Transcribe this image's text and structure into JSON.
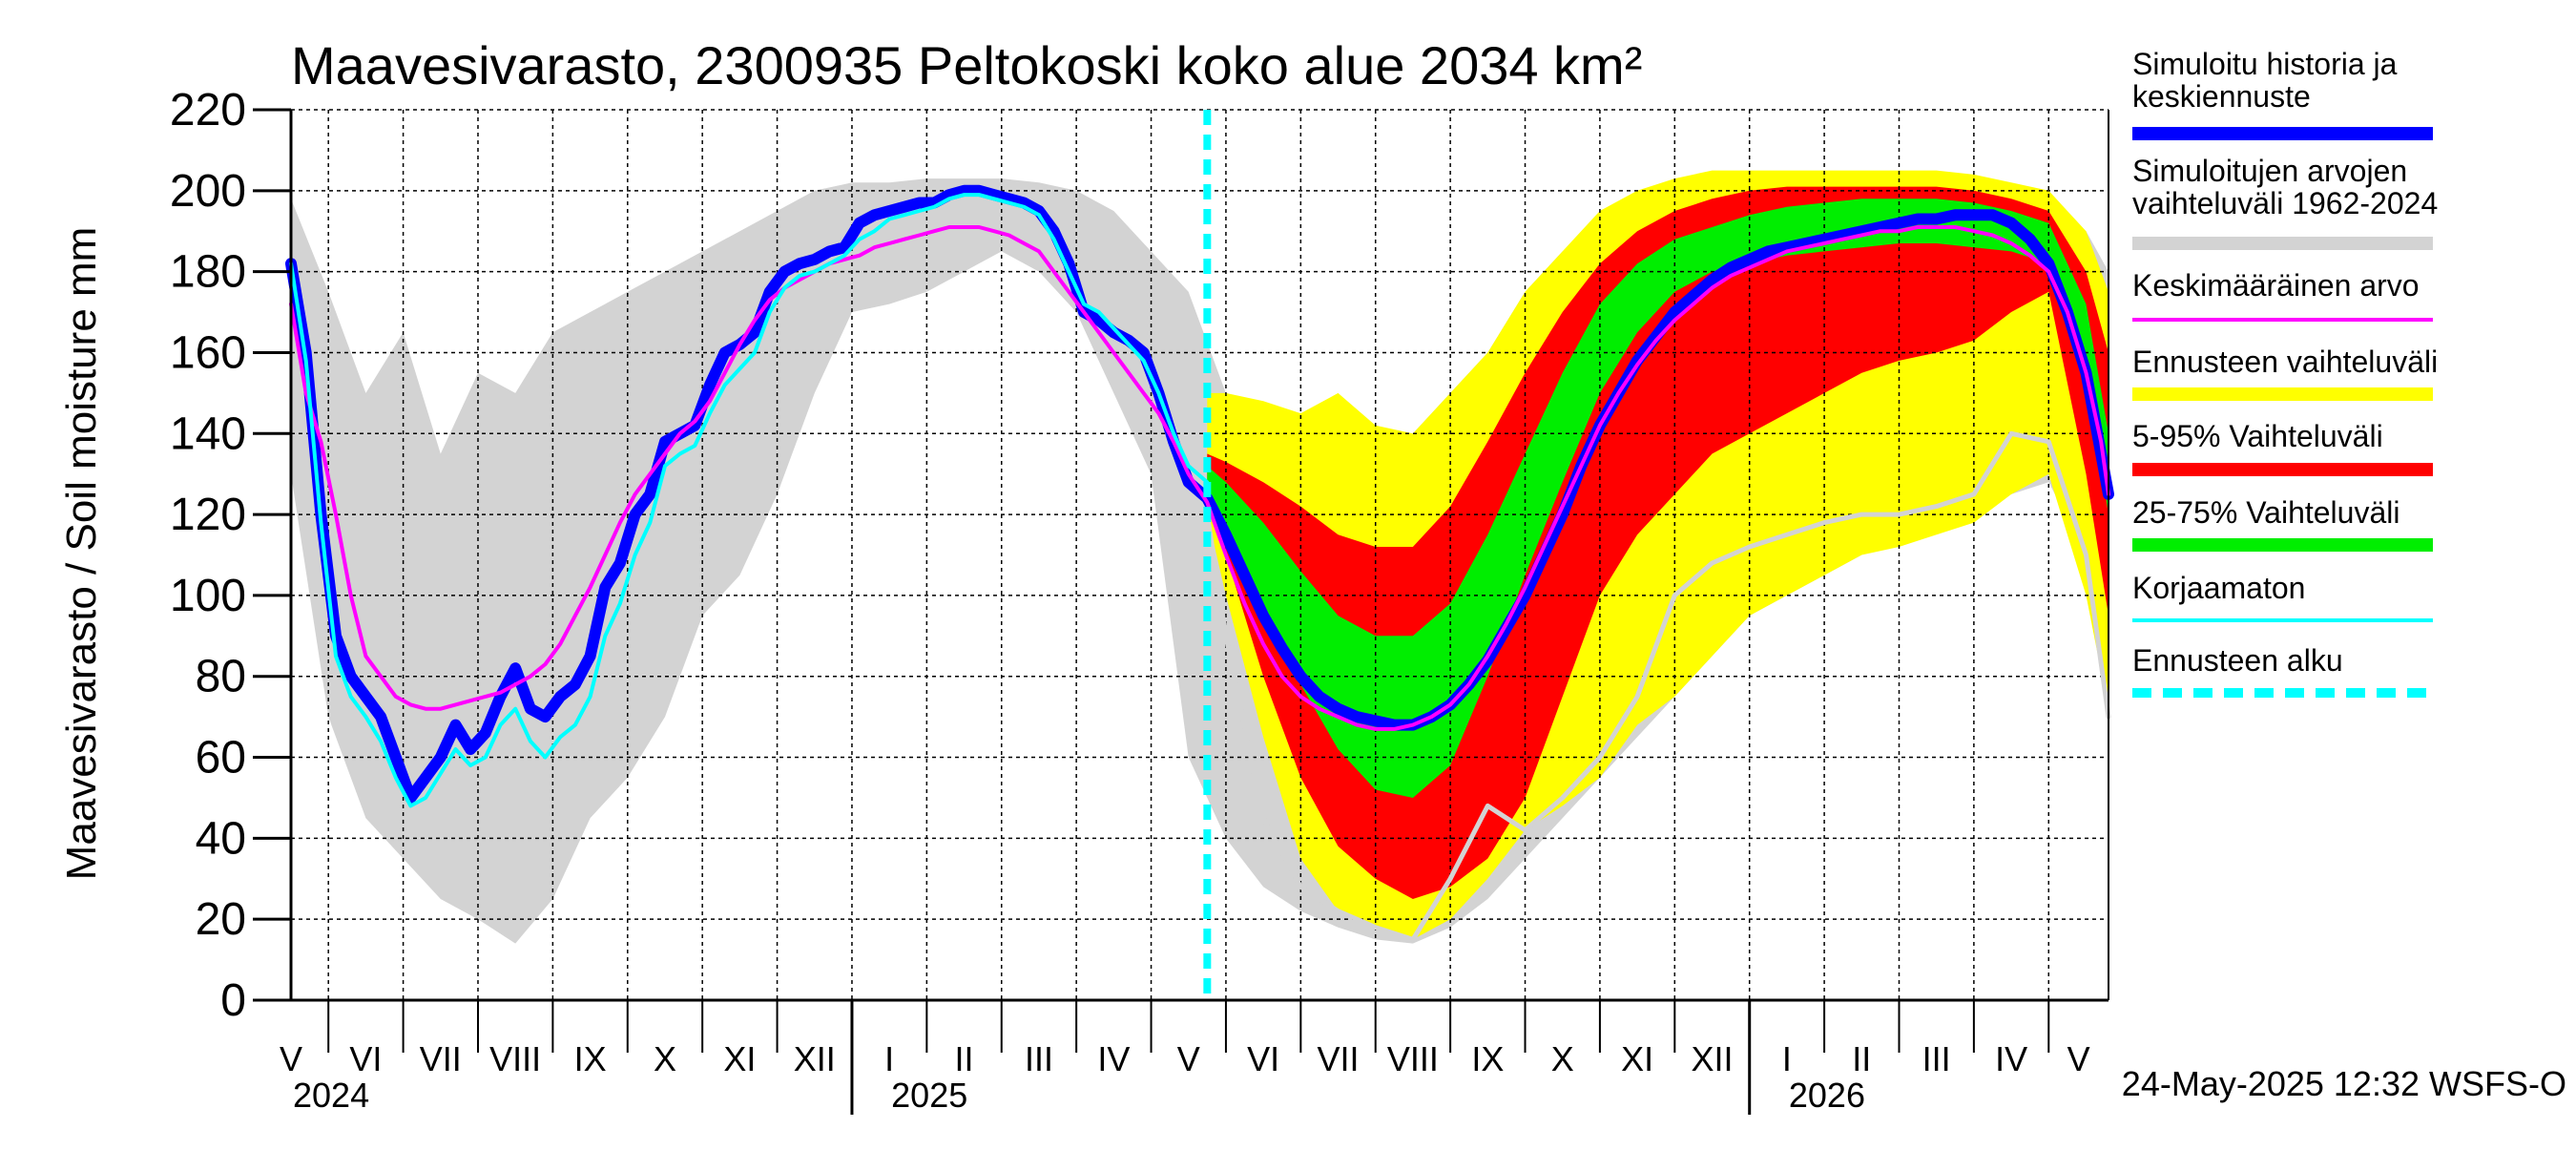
{
  "chart_data": {
    "type": "area",
    "title": "Maavesivarasto, 2300935 Peltokoski koko alue 2034 km²",
    "ylabel": "Maavesivarasto / Soil moisture   mm",
    "ylim": [
      0,
      220
    ],
    "yticks": [
      0,
      20,
      40,
      60,
      80,
      100,
      120,
      140,
      160,
      180,
      200,
      220
    ],
    "x_unit": "months since 1 May 2024",
    "xlim": [
      0.5,
      24.8
    ],
    "forecast_start": 12.75,
    "month_labels": [
      {
        "label": "V",
        "x": 0.5
      },
      {
        "label": "VI",
        "x": 1.5
      },
      {
        "label": "VII",
        "x": 2.5
      },
      {
        "label": "VIII",
        "x": 3.5
      },
      {
        "label": "IX",
        "x": 4.5
      },
      {
        "label": "X",
        "x": 5.5
      },
      {
        "label": "XI",
        "x": 6.5
      },
      {
        "label": "XII",
        "x": 7.5
      },
      {
        "label": "I",
        "x": 8.5
      },
      {
        "label": "II",
        "x": 9.5
      },
      {
        "label": "III",
        "x": 10.5
      },
      {
        "label": "IV",
        "x": 11.5
      },
      {
        "label": "V",
        "x": 12.5
      },
      {
        "label": "VI",
        "x": 13.5
      },
      {
        "label": "VII",
        "x": 14.5
      },
      {
        "label": "VIII",
        "x": 15.5
      },
      {
        "label": "IX",
        "x": 16.5
      },
      {
        "label": "X",
        "x": 17.5
      },
      {
        "label": "XI",
        "x": 18.5
      },
      {
        "label": "XII",
        "x": 19.5
      },
      {
        "label": "I",
        "x": 20.5
      },
      {
        "label": "II",
        "x": 21.5
      },
      {
        "label": "III",
        "x": 22.5
      },
      {
        "label": "IV",
        "x": 23.5
      },
      {
        "label": "V",
        "x": 24.4
      }
    ],
    "year_labels": [
      {
        "label": "2024",
        "x": 0.5
      },
      {
        "label": "2025",
        "x": 8.5
      },
      {
        "label": "2026",
        "x": 20.5
      }
    ],
    "year_ticks": [
      8,
      20
    ],
    "series": [
      {
        "name": "Simuloitujen arvojen vaihteluväli 1962-2024",
        "kind": "band",
        "color": "#d3d3d3",
        "x": [
          0.5,
          1.0,
          1.5,
          2.0,
          2.5,
          3.0,
          3.5,
          4.0,
          4.5,
          5.0,
          5.5,
          6.0,
          6.5,
          7.0,
          7.5,
          8.0,
          8.5,
          9.0,
          9.5,
          10.0,
          10.5,
          11.0,
          11.5,
          12.0,
          12.5,
          13.0,
          13.5,
          14.0,
          14.5,
          15.0,
          15.5,
          16.0,
          16.5,
          17.0,
          17.5,
          18.0,
          18.5,
          19.0,
          19.5,
          20.0,
          20.5,
          21.0,
          21.5,
          22.0,
          22.5,
          23.0,
          23.5,
          24.0,
          24.5,
          24.8
        ],
        "low": [
          130,
          70,
          45,
          35,
          25,
          20,
          14,
          25,
          45,
          55,
          70,
          95,
          105,
          125,
          150,
          170,
          172,
          175,
          180,
          185,
          180,
          170,
          150,
          130,
          60,
          40,
          28,
          22,
          18,
          15,
          14,
          18,
          25,
          35,
          45,
          55,
          65,
          75,
          85,
          95,
          100,
          105,
          110,
          115,
          118,
          120,
          125,
          128,
          110,
          70
        ],
        "high": [
          198,
          175,
          150,
          165,
          135,
          155,
          150,
          165,
          170,
          175,
          180,
          185,
          190,
          195,
          200,
          202,
          202,
          203,
          203,
          203,
          202,
          200,
          195,
          185,
          175,
          150,
          130,
          125,
          125,
          130,
          140,
          150,
          160,
          175,
          185,
          190,
          194,
          197,
          198,
          200,
          200,
          201,
          201,
          201,
          201,
          200,
          199,
          196,
          190,
          180
        ]
      },
      {
        "name": "Ennusteen vaihteluväli",
        "kind": "band",
        "color": "#ffff00",
        "x": [
          12.75,
          13.0,
          13.5,
          14.0,
          14.5,
          15.0,
          15.5,
          16.0,
          16.5,
          17.0,
          17.5,
          18.0,
          18.5,
          19.0,
          19.5,
          20.0,
          20.5,
          21.0,
          21.5,
          22.0,
          22.5,
          23.0,
          23.5,
          24.0,
          24.5,
          24.8
        ],
        "low": [
          120,
          100,
          65,
          35,
          22,
          18,
          15,
          20,
          30,
          42,
          48,
          55,
          68,
          75,
          85,
          95,
          100,
          105,
          110,
          112,
          115,
          118,
          125,
          130,
          100,
          72
        ],
        "high": [
          150,
          150,
          148,
          145,
          150,
          142,
          140,
          150,
          160,
          175,
          185,
          195,
          200,
          203,
          205,
          205,
          205,
          205,
          205,
          205,
          205,
          204,
          202,
          200,
          190,
          175
        ]
      },
      {
        "name": "5-95% Vaihteluväli",
        "kind": "band",
        "color": "#ff0000",
        "x": [
          12.75,
          13.0,
          13.5,
          14.0,
          14.5,
          15.0,
          15.5,
          16.0,
          16.5,
          17.0,
          17.5,
          18.0,
          18.5,
          19.0,
          19.5,
          20.0,
          20.5,
          21.0,
          21.5,
          22.0,
          22.5,
          23.0,
          23.5,
          24.0,
          24.5,
          24.8
        ],
        "low": [
          125,
          110,
          80,
          55,
          38,
          30,
          25,
          28,
          35,
          50,
          75,
          100,
          115,
          125,
          135,
          140,
          145,
          150,
          155,
          158,
          160,
          163,
          170,
          175,
          130,
          95
        ],
        "high": [
          135,
          133,
          128,
          122,
          115,
          112,
          112,
          122,
          138,
          155,
          170,
          182,
          190,
          195,
          198,
          200,
          201,
          201,
          201,
          201,
          201,
          200,
          198,
          195,
          180,
          160
        ]
      },
      {
        "name": "25-75% Vaihteluväli",
        "kind": "band",
        "color": "#00ee00",
        "x": [
          12.75,
          13.0,
          13.5,
          14.0,
          14.5,
          15.0,
          15.5,
          16.0,
          16.5,
          17.0,
          17.5,
          18.0,
          18.5,
          19.0,
          19.5,
          20.0,
          20.5,
          21.0,
          21.5,
          22.0,
          22.5,
          23.0,
          23.5,
          24.0,
          24.5,
          24.8
        ],
        "low": [
          123,
          118,
          98,
          78,
          62,
          52,
          50,
          58,
          80,
          105,
          128,
          150,
          165,
          175,
          180,
          182,
          184,
          185,
          186,
          187,
          187,
          186,
          185,
          182,
          155,
          120
        ],
        "high": [
          132,
          128,
          118,
          106,
          95,
          90,
          90,
          98,
          115,
          135,
          155,
          172,
          182,
          188,
          191,
          194,
          196,
          197,
          198,
          198,
          198,
          197,
          195,
          192,
          172,
          140
        ]
      },
      {
        "name": "Simuloitu historia ja keskiennuste",
        "kind": "line",
        "color": "#0000ff",
        "width": 12,
        "x": [
          0.5,
          0.7,
          0.9,
          1.1,
          1.3,
          1.5,
          1.7,
          1.9,
          2.1,
          2.3,
          2.5,
          2.7,
          2.9,
          3.1,
          3.3,
          3.5,
          3.7,
          3.9,
          4.1,
          4.3,
          4.5,
          4.7,
          4.9,
          5.1,
          5.3,
          5.5,
          5.7,
          5.9,
          6.1,
          6.3,
          6.5,
          6.7,
          6.9,
          7.1,
          7.3,
          7.5,
          7.7,
          7.9,
          8.1,
          8.3,
          8.5,
          8.7,
          8.9,
          9.1,
          9.3,
          9.5,
          9.7,
          9.9,
          10.1,
          10.3,
          10.5,
          10.7,
          10.9,
          11.1,
          11.3,
          11.5,
          11.7,
          11.9,
          12.1,
          12.3,
          12.5,
          12.75,
          13.0,
          13.25,
          13.5,
          13.75,
          14.0,
          14.25,
          14.5,
          14.75,
          15.0,
          15.25,
          15.5,
          15.75,
          16.0,
          16.25,
          16.5,
          16.75,
          17.0,
          17.25,
          17.5,
          17.75,
          18.0,
          18.25,
          18.5,
          18.75,
          19.0,
          19.25,
          19.5,
          19.75,
          20.0,
          20.25,
          20.5,
          20.75,
          21.0,
          21.25,
          21.5,
          21.75,
          22.0,
          22.25,
          22.5,
          22.75,
          23.0,
          23.25,
          23.5,
          23.75,
          24.0,
          24.25,
          24.5,
          24.7,
          24.8
        ],
        "y": [
          182,
          160,
          120,
          90,
          80,
          75,
          70,
          60,
          50,
          55,
          60,
          68,
          62,
          66,
          75,
          82,
          72,
          70,
          75,
          78,
          85,
          102,
          108,
          120,
          125,
          138,
          140,
          142,
          152,
          160,
          162,
          165,
          175,
          180,
          182,
          183,
          185,
          186,
          192,
          194,
          195,
          196,
          197,
          197,
          199,
          200,
          200,
          199,
          198,
          197,
          195,
          190,
          182,
          170,
          168,
          165,
          163,
          160,
          150,
          138,
          128,
          124,
          115,
          105,
          95,
          87,
          80,
          75,
          72,
          70,
          69,
          68,
          68,
          70,
          73,
          78,
          84,
          92,
          100,
          110,
          120,
          132,
          142,
          150,
          158,
          164,
          170,
          174,
          178,
          181,
          183,
          185,
          186,
          187,
          188,
          189,
          190,
          191,
          192,
          193,
          193,
          194,
          194,
          194,
          192,
          188,
          182,
          170,
          155,
          135,
          125
        ]
      },
      {
        "name": "Keskimääräinen arvo",
        "kind": "line",
        "color": "#ff00ff",
        "width": 4,
        "x": [
          0.5,
          0.7,
          0.9,
          1.1,
          1.3,
          1.5,
          1.7,
          1.9,
          2.1,
          2.3,
          2.5,
          2.7,
          2.9,
          3.1,
          3.3,
          3.5,
          3.7,
          3.9,
          4.1,
          4.3,
          4.5,
          4.7,
          4.9,
          5.1,
          5.3,
          5.5,
          5.7,
          5.9,
          6.1,
          6.3,
          6.5,
          6.7,
          6.9,
          7.1,
          7.3,
          7.5,
          7.7,
          7.9,
          8.1,
          8.3,
          8.5,
          8.7,
          8.9,
          9.1,
          9.3,
          9.5,
          9.7,
          9.9,
          10.1,
          10.3,
          10.5,
          10.7,
          10.9,
          11.1,
          11.3,
          11.5,
          11.7,
          11.9,
          12.1,
          12.3,
          12.5,
          12.75,
          13.0,
          13.25,
          13.5,
          13.75,
          14.0,
          14.25,
          14.5,
          14.75,
          15.0,
          15.25,
          15.5,
          15.75,
          16.0,
          16.25,
          16.5,
          16.75,
          17.0,
          17.25,
          17.5,
          17.75,
          18.0,
          18.25,
          18.5,
          18.75,
          19.0,
          19.25,
          19.5,
          19.75,
          20.0,
          20.25,
          20.5,
          20.75,
          21.0,
          21.25,
          21.5,
          21.75,
          22.0,
          22.25,
          22.5,
          22.75,
          23.0,
          23.25,
          23.5,
          23.75,
          24.0,
          24.25,
          24.5,
          24.7,
          24.8
        ],
        "y": [
          172,
          150,
          138,
          120,
          100,
          85,
          80,
          75,
          73,
          72,
          72,
          73,
          74,
          75,
          76,
          78,
          80,
          83,
          88,
          95,
          102,
          110,
          118,
          125,
          130,
          135,
          140,
          143,
          148,
          155,
          162,
          168,
          173,
          176,
          178,
          180,
          182,
          183,
          184,
          186,
          187,
          188,
          189,
          190,
          191,
          191,
          191,
          190,
          189,
          187,
          185,
          180,
          175,
          170,
          165,
          160,
          155,
          150,
          145,
          138,
          130,
          123,
          110,
          98,
          88,
          80,
          75,
          72,
          70,
          68,
          67,
          67,
          68,
          70,
          73,
          78,
          85,
          93,
          102,
          112,
          122,
          132,
          142,
          150,
          157,
          163,
          168,
          172,
          176,
          179,
          181,
          183,
          185,
          186,
          187,
          188,
          189,
          190,
          190,
          191,
          191,
          191,
          190,
          189,
          187,
          184,
          180,
          170,
          155,
          138,
          125
        ]
      },
      {
        "name": "Korjaamaton",
        "kind": "line",
        "color": "#00ffff",
        "width": 4,
        "x": [
          0.5,
          0.7,
          0.9,
          1.1,
          1.3,
          1.5,
          1.7,
          1.9,
          2.1,
          2.3,
          2.5,
          2.7,
          2.9,
          3.1,
          3.3,
          3.5,
          3.7,
          3.9,
          4.1,
          4.3,
          4.5,
          4.7,
          4.9,
          5.1,
          5.3,
          5.5,
          5.7,
          5.9,
          6.1,
          6.3,
          6.5,
          6.7,
          6.9,
          7.1,
          7.3,
          7.5,
          7.7,
          7.9,
          8.1,
          8.3,
          8.5,
          8.7,
          8.9,
          9.1,
          9.3,
          9.5,
          9.7,
          9.9,
          10.1,
          10.3,
          10.5,
          10.7,
          10.9,
          11.1,
          11.3,
          11.5,
          11.7,
          11.9,
          12.1,
          12.3,
          12.5,
          12.75
        ],
        "y": [
          182,
          158,
          118,
          85,
          75,
          70,
          64,
          55,
          48,
          50,
          56,
          62,
          58,
          60,
          68,
          72,
          64,
          60,
          65,
          68,
          75,
          90,
          98,
          110,
          118,
          132,
          135,
          137,
          145,
          152,
          156,
          160,
          170,
          176,
          179,
          180,
          182,
          184,
          188,
          190,
          193,
          194,
          195,
          196,
          198,
          199,
          199,
          198,
          197,
          196,
          194,
          188,
          180,
          172,
          170,
          166,
          162,
          158,
          150,
          140,
          132,
          128
        ]
      },
      {
        "name": "Simuloitujen arvojen min",
        "kind": "line",
        "color": "#d3d3d3",
        "width": 5,
        "x": [
          12.75,
          13.0,
          13.5,
          14.0,
          14.5,
          15.0,
          15.5,
          16.0,
          16.5,
          17.0,
          17.5,
          18.0,
          18.5,
          19.0,
          19.5,
          20.0,
          20.5,
          21.0,
          21.5,
          22.0,
          22.5,
          23.0,
          23.5,
          24.0,
          24.5,
          24.8
        ],
        "y": [
          120,
          90,
          45,
          28,
          22,
          18,
          15,
          30,
          48,
          42,
          50,
          60,
          75,
          100,
          108,
          112,
          115,
          118,
          120,
          120,
          122,
          125,
          140,
          138,
          110,
          70
        ]
      }
    ],
    "legend": [
      {
        "label": "Simuloitu historia ja keskiennuste",
        "color": "#0000ff",
        "style": "thick"
      },
      {
        "label": "Simuloitujen arvojen vaihteluväli 1962-2024",
        "color": "#d3d3d3",
        "style": "thick"
      },
      {
        "label": "Keskimääräinen arvo",
        "color": "#ff00ff",
        "style": "thin"
      },
      {
        "label": "Ennusteen vaihteluväli",
        "color": "#ffff00",
        "style": "thick"
      },
      {
        "label": "5-95% Vaihteluväli",
        "color": "#ff0000",
        "style": "thick"
      },
      {
        "label": "25-75% Vaihteluväli",
        "color": "#00ee00",
        "style": "thick"
      },
      {
        "label": "Korjaamaton",
        "color": "#00ffff",
        "style": "thin"
      },
      {
        "label": "Ennusteen alku",
        "color": "#00ffff",
        "style": "dashed"
      }
    ],
    "footer": "24-May-2025 12:32 WSFS-O"
  }
}
